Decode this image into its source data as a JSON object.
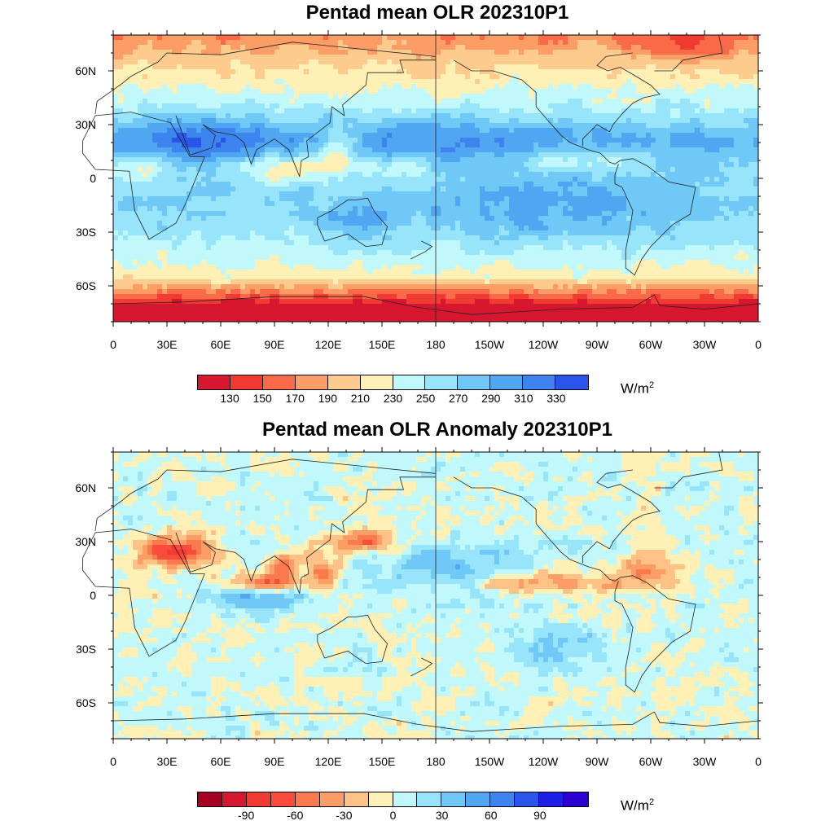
{
  "maps": [
    {
      "title": "Pentad mean OLR 202310P1",
      "colorbar": {
        "colors": [
          "#d7172f",
          "#f03a32",
          "#fa6a49",
          "#fd9d66",
          "#fecb8f",
          "#fff1b6",
          "#c1f8fc",
          "#97e4fb",
          "#6fc8f6",
          "#50a6f1",
          "#3d84ef",
          "#2a55ea"
        ],
        "labels": [
          "130",
          "150",
          "170",
          "190",
          "210",
          "230",
          "250",
          "270",
          "290",
          "310",
          "330"
        ],
        "unit_base": "W/m",
        "unit_exp": "2"
      }
    },
    {
      "title": "Pentad mean OLR Anomaly 202310P1",
      "colorbar": {
        "colors": [
          "#a50021",
          "#d7172f",
          "#f03a32",
          "#fa4b3b",
          "#fa7a4e",
          "#fd9d66",
          "#fec287",
          "#fff1b6",
          "#c1f8fc",
          "#97e4fb",
          "#6fc8f6",
          "#50a6f1",
          "#3d84ef",
          "#2a55ea",
          "#1d1fe6",
          "#2b00d0"
        ],
        "labels": [
          "-90",
          "-60",
          "-30",
          "0",
          "30",
          "60",
          "90"
        ],
        "unit_base": "W/m",
        "unit_exp": "2"
      }
    }
  ],
  "axes": {
    "lon_labels": [
      "0",
      "30E",
      "60E",
      "90E",
      "120E",
      "150E",
      "180",
      "150W",
      "120W",
      "90W",
      "60W",
      "30W",
      "0"
    ],
    "lat_labels": [
      "60N",
      "30N",
      "0",
      "30S",
      "60S"
    ]
  }
}
